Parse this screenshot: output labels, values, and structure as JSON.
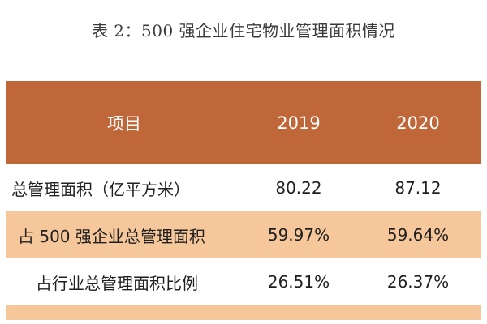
{
  "title": "表 2：500 强企业住宅物业管理面积情况",
  "header": {
    "item": "项目",
    "year1": "2019",
    "year2": "2020"
  },
  "rows": [
    {
      "label": "总管理面积（亿平方米）",
      "v2019": "80.22",
      "v2020": "87.12"
    },
    {
      "label": "占 500 强企业总管理面积",
      "v2019": "59.97%",
      "v2020": "59.64%"
    },
    {
      "label": "占行业总管理面积比例",
      "v2019": "26.51%",
      "v2020": "26.37%"
    }
  ],
  "colors": {
    "header_bg": "#c0673a",
    "alt_row_bg": "#f5c79b",
    "header_text": "#ffffff"
  }
}
